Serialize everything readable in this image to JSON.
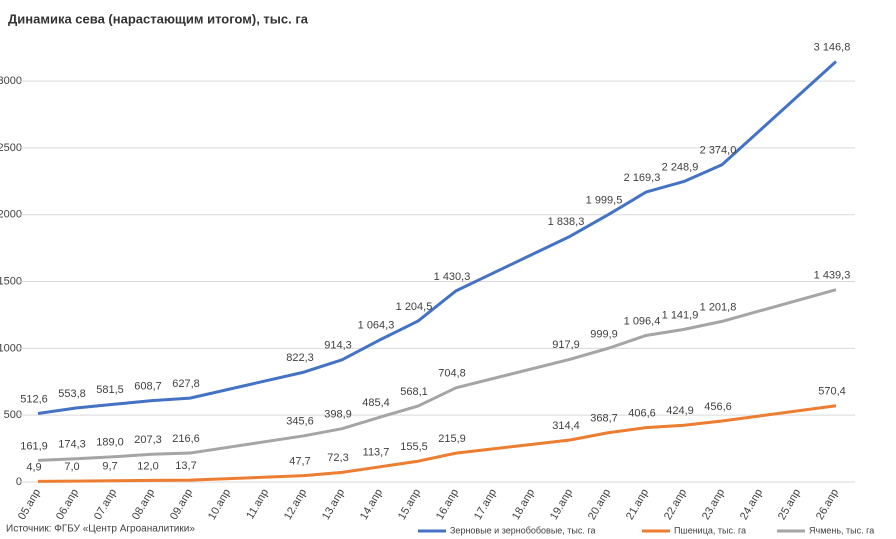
{
  "chart_data": {
    "type": "line",
    "title": "Динамика сева (нарастающим итогом), тыс. га",
    "source": "Источник: ФГБУ «Центр Агроаналитики»",
    "categories": [
      "05.апр",
      "06.апр",
      "07.апр",
      "08.апр",
      "09.апр",
      "10.апр",
      "11.апр",
      "12.апр",
      "13.апр",
      "14.апр",
      "15.апр",
      "16.апр",
      "17.апр",
      "18.апр",
      "19.апр",
      "20.апр",
      "21.апр",
      "22.апр",
      "23.апр",
      "24.апр",
      "25.апр",
      "26.апр"
    ],
    "x": [
      "05.апр",
      "06.апр",
      "07.апр",
      "08.апр",
      "09.апр",
      "12.апр",
      "13.апр",
      "14.апр",
      "15.апр",
      "16.апр",
      "19.апр",
      "20.апр",
      "21.апр",
      "22.апр",
      "23.апр",
      "26.апр"
    ],
    "series": [
      {
        "name": "Зерновые и зернобобовые, тыс. га",
        "color": "#4472c4",
        "values": [
          512.6,
          553.8,
          581.5,
          608.7,
          627.8,
          822.3,
          914.3,
          1064.3,
          1204.5,
          1430.3,
          1838.3,
          1999.5,
          2169.3,
          2248.9,
          2374.0,
          3146.8
        ],
        "value_labels": [
          "512,6",
          "553,8",
          "581,5",
          "608,7",
          "627,8",
          "822,3",
          "914,3",
          "1 064,3",
          "1 204,5",
          "1 430,3",
          "1 838,3",
          "1 999,5",
          "2 169,3",
          "2 248,9",
          "2 374,0",
          "3 146,8"
        ]
      },
      {
        "name": "Пшеница, тыс. га",
        "color": "#ed7d31",
        "values": [
          4.9,
          7.0,
          9.7,
          12.0,
          13.7,
          47.7,
          72.3,
          113.7,
          155.5,
          215.9,
          314.4,
          368.7,
          406.6,
          424.9,
          456.6,
          570.4
        ],
        "value_labels": [
          "4,9",
          "7,0",
          "9,7",
          "12,0",
          "13,7",
          "47,7",
          "72,3",
          "113,7",
          "155,5",
          "215,9",
          "314,4",
          "368,7",
          "406,6",
          "424,9",
          "456,6",
          "570,4"
        ]
      },
      {
        "name": "Ячмень, тыс. га",
        "color": "#a5a5a5",
        "values": [
          161.9,
          174.3,
          189.0,
          207.3,
          216.6,
          345.6,
          398.9,
          485.4,
          568.1,
          704.8,
          917.9,
          999.9,
          1096.4,
          1141.9,
          1201.8,
          1439.3
        ],
        "value_labels": [
          "161,9",
          "174,3",
          "189,0",
          "207,3",
          "216,6",
          "345,6",
          "398,9",
          "485,4",
          "568,1",
          "704,8",
          "917,9",
          "999,9",
          "1 096,4",
          "1 141,9",
          "1 201,8",
          "1 439,3"
        ]
      }
    ],
    "ylim": [
      0,
      3300
    ],
    "yticks": [
      0,
      500,
      1000,
      1500,
      2000,
      2500,
      3000
    ],
    "grid": true,
    "legend": "bottom"
  }
}
